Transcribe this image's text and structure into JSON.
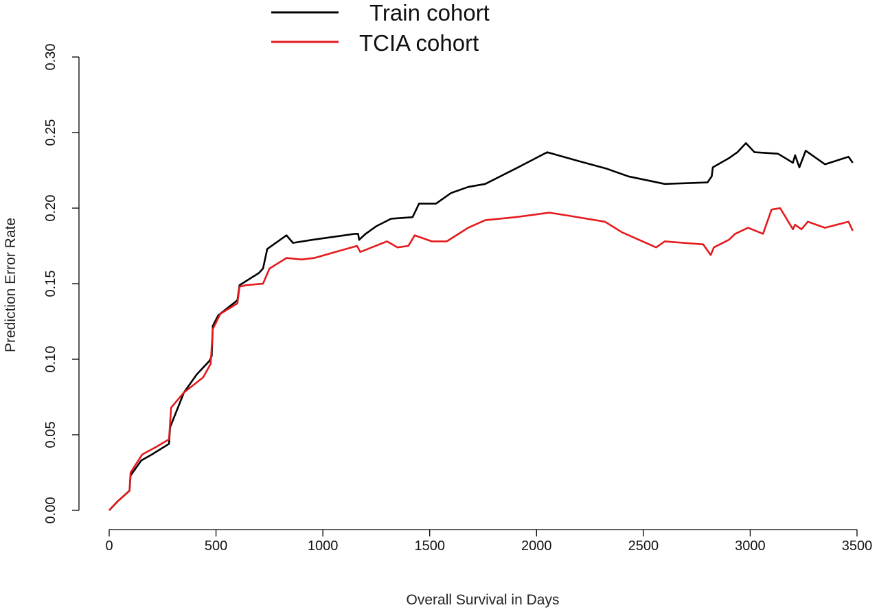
{
  "chart_data": {
    "type": "line",
    "title": "",
    "xlabel": "Overall Survival in Days",
    "ylabel": "Prediction Error Rate",
    "xlim": [
      0,
      3500
    ],
    "ylim": [
      0,
      0.3
    ],
    "xticks": [
      0,
      500,
      1000,
      1500,
      2000,
      2500,
      3000,
      3500
    ],
    "xtick_labels": [
      "0",
      "500",
      "1000",
      "1500",
      "2000",
      "2500",
      "3000",
      "3500"
    ],
    "yticks": [
      0,
      0.05,
      0.1,
      0.15,
      0.2,
      0.25,
      0.3
    ],
    "ytick_labels": [
      "0.00",
      "0.05",
      "0.10",
      "0.15",
      "0.20",
      "0.25",
      "0.30"
    ],
    "grid": false,
    "legend_position": "top-center",
    "series": [
      {
        "name": "Train cohort",
        "color": "#000000",
        "points": [
          [
            0,
            0.0
          ],
          [
            40,
            0.006
          ],
          [
            95,
            0.013
          ],
          [
            100,
            0.023
          ],
          [
            150,
            0.033
          ],
          [
            200,
            0.037
          ],
          [
            280,
            0.044
          ],
          [
            285,
            0.055
          ],
          [
            350,
            0.078
          ],
          [
            410,
            0.09
          ],
          [
            470,
            0.099
          ],
          [
            480,
            0.102
          ],
          [
            485,
            0.122
          ],
          [
            510,
            0.129
          ],
          [
            600,
            0.139
          ],
          [
            610,
            0.149
          ],
          [
            700,
            0.157
          ],
          [
            720,
            0.16
          ],
          [
            740,
            0.173
          ],
          [
            800,
            0.179
          ],
          [
            830,
            0.182
          ],
          [
            860,
            0.177
          ],
          [
            950,
            0.179
          ],
          [
            1050,
            0.181
          ],
          [
            1150,
            0.183
          ],
          [
            1165,
            0.183
          ],
          [
            1170,
            0.179
          ],
          [
            1200,
            0.183
          ],
          [
            1250,
            0.188
          ],
          [
            1320,
            0.193
          ],
          [
            1420,
            0.194
          ],
          [
            1450,
            0.203
          ],
          [
            1530,
            0.203
          ],
          [
            1600,
            0.21
          ],
          [
            1680,
            0.214
          ],
          [
            1760,
            0.216
          ],
          [
            1900,
            0.226
          ],
          [
            2050,
            0.237
          ],
          [
            2200,
            0.231
          ],
          [
            2330,
            0.226
          ],
          [
            2430,
            0.221
          ],
          [
            2600,
            0.216
          ],
          [
            2800,
            0.217
          ],
          [
            2820,
            0.221
          ],
          [
            2825,
            0.227
          ],
          [
            2900,
            0.233
          ],
          [
            2940,
            0.237
          ],
          [
            2980,
            0.243
          ],
          [
            3020,
            0.237
          ],
          [
            3130,
            0.236
          ],
          [
            3200,
            0.23
          ],
          [
            3210,
            0.235
          ],
          [
            3230,
            0.227
          ],
          [
            3260,
            0.238
          ],
          [
            3350,
            0.229
          ],
          [
            3460,
            0.234
          ],
          [
            3480,
            0.23
          ]
        ]
      },
      {
        "name": "TCIA cohort",
        "color": "#e41a1c",
        "points": [
          [
            0,
            0.0
          ],
          [
            40,
            0.006
          ],
          [
            95,
            0.013
          ],
          [
            100,
            0.025
          ],
          [
            155,
            0.037
          ],
          [
            220,
            0.042
          ],
          [
            280,
            0.047
          ],
          [
            290,
            0.068
          ],
          [
            350,
            0.078
          ],
          [
            440,
            0.088
          ],
          [
            475,
            0.097
          ],
          [
            485,
            0.12
          ],
          [
            520,
            0.13
          ],
          [
            600,
            0.137
          ],
          [
            610,
            0.148
          ],
          [
            640,
            0.149
          ],
          [
            720,
            0.15
          ],
          [
            750,
            0.16
          ],
          [
            830,
            0.167
          ],
          [
            900,
            0.166
          ],
          [
            960,
            0.167
          ],
          [
            1060,
            0.171
          ],
          [
            1160,
            0.175
          ],
          [
            1175,
            0.171
          ],
          [
            1300,
            0.178
          ],
          [
            1350,
            0.174
          ],
          [
            1400,
            0.175
          ],
          [
            1430,
            0.182
          ],
          [
            1510,
            0.178
          ],
          [
            1580,
            0.178
          ],
          [
            1680,
            0.187
          ],
          [
            1760,
            0.192
          ],
          [
            1900,
            0.194
          ],
          [
            2060,
            0.197
          ],
          [
            2150,
            0.195
          ],
          [
            2320,
            0.191
          ],
          [
            2400,
            0.184
          ],
          [
            2560,
            0.174
          ],
          [
            2600,
            0.178
          ],
          [
            2780,
            0.176
          ],
          [
            2815,
            0.169
          ],
          [
            2830,
            0.174
          ],
          [
            2900,
            0.179
          ],
          [
            2930,
            0.183
          ],
          [
            2990,
            0.187
          ],
          [
            3060,
            0.183
          ],
          [
            3100,
            0.199
          ],
          [
            3140,
            0.2
          ],
          [
            3200,
            0.186
          ],
          [
            3210,
            0.189
          ],
          [
            3240,
            0.186
          ],
          [
            3270,
            0.191
          ],
          [
            3350,
            0.187
          ],
          [
            3460,
            0.191
          ],
          [
            3480,
            0.185
          ]
        ]
      }
    ]
  }
}
